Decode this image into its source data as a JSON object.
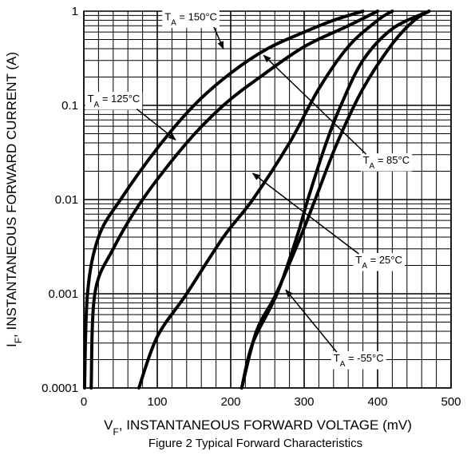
{
  "chart_data": {
    "type": "line",
    "x_scale": "linear",
    "y_scale": "log",
    "xlim": [
      0,
      500
    ],
    "ylim": [
      0.0001,
      1
    ],
    "x_ticks": [
      0,
      100,
      200,
      300,
      400,
      500
    ],
    "x_tick_labels": [
      "0",
      "100",
      "200",
      "300",
      "400",
      "500"
    ],
    "y_ticks": [
      0.0001,
      0.001,
      0.01,
      0.1,
      1
    ],
    "y_tick_labels": [
      "0.0001",
      "0.001",
      "0.01",
      "0.1",
      "1"
    ],
    "xlabel": {
      "prefix": "V",
      "sub": "F",
      "text": ", INSTANTANEOUS FORWARD VOLTAGE (mV)"
    },
    "ylabel": {
      "prefix": "I",
      "sub": "F",
      "text": ", INSTANTANEOUS FORWARD CURRENT (A)"
    },
    "caption": "Figure 2 Typical Forward Characteristics",
    "grid": true,
    "series": [
      {
        "name": "150°C",
        "label": {
          "prefix": "T",
          "sub": "A",
          "text": " = 150°C"
        },
        "points": [
          [
            1,
            0.0001
          ],
          [
            5,
            0.001
          ],
          [
            20,
            0.004
          ],
          [
            50,
            0.01
          ],
          [
            100,
            0.035
          ],
          [
            150,
            0.1
          ],
          [
            200,
            0.22
          ],
          [
            250,
            0.4
          ],
          [
            300,
            0.6
          ],
          [
            340,
            0.8
          ],
          [
            380,
            1
          ]
        ]
      },
      {
        "name": "125°C",
        "label": {
          "prefix": "T",
          "sub": "A",
          "text": " = 125°C"
        },
        "points": [
          [
            10,
            0.0001
          ],
          [
            15,
            0.001
          ],
          [
            40,
            0.003
          ],
          [
            80,
            0.01
          ],
          [
            140,
            0.04
          ],
          [
            190,
            0.1
          ],
          [
            240,
            0.2
          ],
          [
            300,
            0.42
          ],
          [
            360,
            0.7
          ],
          [
            400,
            1
          ]
        ]
      },
      {
        "name": "85°C",
        "label": {
          "prefix": "T",
          "sub": "A",
          "text": " = 85°C"
        },
        "points": [
          [
            75,
            0.0001
          ],
          [
            100,
            0.00035
          ],
          [
            140,
            0.001
          ],
          [
            190,
            0.004
          ],
          [
            230,
            0.01
          ],
          [
            280,
            0.04
          ],
          [
            320,
            0.15
          ],
          [
            360,
            0.42
          ],
          [
            400,
            0.8
          ],
          [
            420,
            1
          ]
        ]
      },
      {
        "name": "25°C",
        "label": {
          "prefix": "T",
          "sub": "A",
          "text": " = 25°C"
        },
        "points": [
          [
            215,
            0.0001
          ],
          [
            235,
            0.0004
          ],
          [
            262,
            0.001
          ],
          [
            295,
            0.004
          ],
          [
            315,
            0.01
          ],
          [
            345,
            0.04
          ],
          [
            380,
            0.15
          ],
          [
            420,
            0.45
          ],
          [
            450,
            0.8
          ],
          [
            470,
            1
          ]
        ]
      },
      {
        "name": "-55°C",
        "label": {
          "prefix": "T",
          "sub": "A",
          "text": " = -55°C"
        },
        "points": [
          [
            215,
            0.0001
          ],
          [
            230,
            0.0003
          ],
          [
            263,
            0.001
          ],
          [
            290,
            0.004
          ],
          [
            305,
            0.01
          ],
          [
            330,
            0.04
          ],
          [
            350,
            0.1
          ],
          [
            380,
            0.3
          ],
          [
            420,
            0.65
          ],
          [
            470,
            1
          ]
        ]
      }
    ],
    "annotations": [
      {
        "series": "150°C",
        "label_at": [
          110,
          0.8
        ],
        "arrow_to": [
          190,
          0.4
        ]
      },
      {
        "series": "125°C",
        "label_at": [
          5,
          0.108
        ],
        "arrow_to": [
          125,
          0.043
        ]
      },
      {
        "series": "85°C",
        "label_at": [
          380,
          0.024
        ],
        "arrow_to": [
          245,
          0.34
        ]
      },
      {
        "series": "25°C",
        "label_at": [
          370,
          0.0021
        ],
        "arrow_to": [
          230,
          0.019
        ]
      },
      {
        "series": "-55°C",
        "label_at": [
          340,
          0.00019
        ],
        "arrow_to": [
          275,
          0.0011
        ]
      }
    ]
  }
}
